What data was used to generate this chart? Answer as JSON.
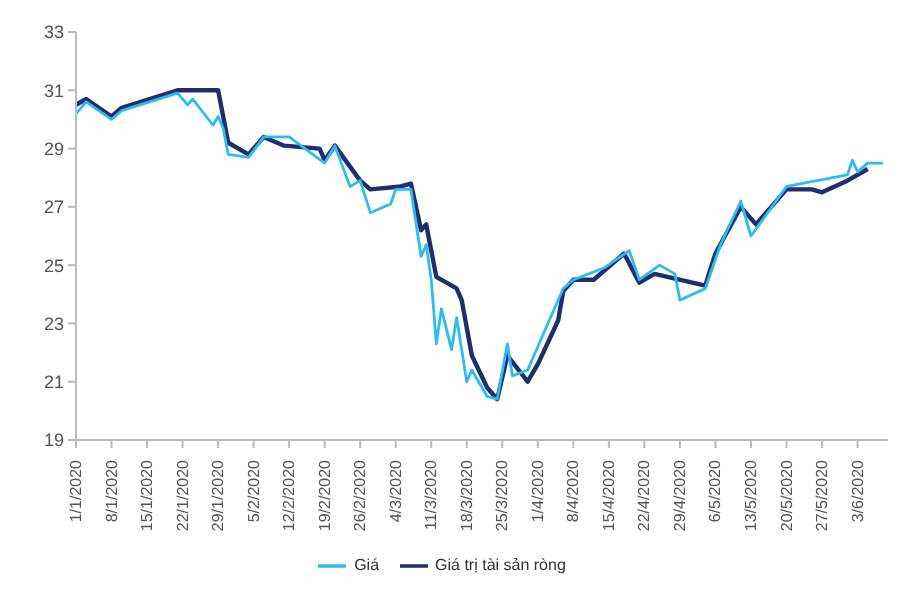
{
  "chart_data": {
    "type": "line",
    "xlim": [
      "2020-01-01",
      "2020-06-09"
    ],
    "ylim": [
      19,
      33
    ],
    "yticks": [
      19,
      21,
      23,
      25,
      27,
      29,
      31,
      33
    ],
    "xticks": [
      {
        "value": "2020-01-01",
        "label": "1/1/2020"
      },
      {
        "value": "2020-01-08",
        "label": "8/1/2020"
      },
      {
        "value": "2020-01-15",
        "label": "15/1/2020"
      },
      {
        "value": "2020-01-22",
        "label": "22/1/2020"
      },
      {
        "value": "2020-01-29",
        "label": "29/1/2020"
      },
      {
        "value": "2020-02-05",
        "label": "5/2/2020"
      },
      {
        "value": "2020-02-12",
        "label": "12/2/2020"
      },
      {
        "value": "2020-02-19",
        "label": "19/2/2020"
      },
      {
        "value": "2020-02-26",
        "label": "26/2/2020"
      },
      {
        "value": "2020-03-04",
        "label": "4/3/2020"
      },
      {
        "value": "2020-03-11",
        "label": "11/3/2020"
      },
      {
        "value": "2020-03-18",
        "label": "18/3/2020"
      },
      {
        "value": "2020-03-25",
        "label": "25/3/2020"
      },
      {
        "value": "2020-04-01",
        "label": "1/4/2020"
      },
      {
        "value": "2020-04-08",
        "label": "8/4/2020"
      },
      {
        "value": "2020-04-15",
        "label": "15/4/2020"
      },
      {
        "value": "2020-04-22",
        "label": "22/4/2020"
      },
      {
        "value": "2020-04-29",
        "label": "29/4/2020"
      },
      {
        "value": "2020-05-06",
        "label": "6/5/2020"
      },
      {
        "value": "2020-05-13",
        "label": "13/5/2020"
      },
      {
        "value": "2020-05-20",
        "label": "20/5/2020"
      },
      {
        "value": "2020-05-27",
        "label": "27/5/2020"
      },
      {
        "value": "2020-06-03",
        "label": "3/6/2020"
      }
    ],
    "grid": false,
    "legend": "bottom",
    "marker": "none",
    "line_style": "solid",
    "series": [
      {
        "name": "Giá trị tài sản ròng",
        "color": "#1f2f6e",
        "x": [
          "2020-01-01",
          "2020-01-03",
          "2020-01-08",
          "2020-01-10",
          "2020-01-21",
          "2020-01-29",
          "2020-01-31",
          "2020-02-04",
          "2020-02-07",
          "2020-02-11",
          "2020-02-18",
          "2020-02-19",
          "2020-02-21",
          "2020-02-26",
          "2020-02-28",
          "2020-03-05",
          "2020-03-07",
          "2020-03-09",
          "2020-03-10",
          "2020-03-12",
          "2020-03-16",
          "2020-03-17",
          "2020-03-19",
          "2020-03-22",
          "2020-03-24",
          "2020-03-26",
          "2020-03-30",
          "2020-04-01",
          "2020-04-05",
          "2020-04-06",
          "2020-04-08",
          "2020-04-12",
          "2020-04-18",
          "2020-04-21",
          "2020-04-24",
          "2020-05-04",
          "2020-05-06",
          "2020-05-11",
          "2020-05-14",
          "2020-05-20",
          "2020-05-25",
          "2020-05-27",
          "2020-06-01",
          "2020-06-05"
        ],
        "values": [
          30.5,
          30.7,
          30.1,
          30.4,
          31.0,
          31.0,
          29.2,
          28.8,
          29.4,
          29.1,
          29.0,
          28.6,
          29.1,
          27.9,
          27.6,
          27.7,
          27.8,
          26.2,
          26.4,
          24.6,
          24.2,
          23.8,
          21.9,
          20.8,
          20.4,
          21.9,
          21.0,
          21.6,
          23.1,
          24.1,
          24.5,
          24.5,
          25.4,
          24.4,
          24.7,
          24.3,
          25.4,
          27.0,
          26.4,
          27.6,
          27.6,
          27.5,
          27.9,
          28.3
        ]
      },
      {
        "name": "Giá",
        "color": "#2ebcf0",
        "x": [
          "2020-01-01",
          "2020-01-03",
          "2020-01-08",
          "2020-01-10",
          "2020-01-21",
          "2020-01-23",
          "2020-01-24",
          "2020-01-28",
          "2020-01-29",
          "2020-01-30",
          "2020-01-31",
          "2020-02-04",
          "2020-02-07",
          "2020-02-12",
          "2020-02-19",
          "2020-02-21",
          "2020-02-24",
          "2020-02-26",
          "2020-02-28",
          "2020-03-03",
          "2020-03-04",
          "2020-03-07",
          "2020-03-09",
          "2020-03-10",
          "2020-03-11",
          "2020-03-12",
          "2020-03-13",
          "2020-03-15",
          "2020-03-16",
          "2020-03-18",
          "2020-03-19",
          "2020-03-22",
          "2020-03-24",
          "2020-03-26",
          "2020-03-27",
          "2020-03-30",
          "2020-04-06",
          "2020-04-08",
          "2020-04-14",
          "2020-04-19",
          "2020-04-21",
          "2020-04-25",
          "2020-04-28",
          "2020-04-29",
          "2020-05-04",
          "2020-05-07",
          "2020-05-11",
          "2020-05-13",
          "2020-05-20",
          "2020-05-26",
          "2020-06-01",
          "2020-06-02",
          "2020-06-03",
          "2020-06-05",
          "2020-06-08"
        ],
        "values": [
          30.2,
          30.6,
          30.0,
          30.3,
          30.9,
          30.5,
          30.7,
          29.8,
          30.1,
          29.7,
          28.8,
          28.7,
          29.4,
          29.4,
          28.5,
          29.1,
          27.7,
          27.9,
          26.8,
          27.1,
          27.6,
          27.6,
          25.3,
          25.7,
          24.5,
          22.3,
          23.5,
          22.1,
          23.2,
          21.0,
          21.4,
          20.5,
          20.4,
          22.3,
          21.2,
          21.4,
          24.2,
          24.5,
          24.9,
          25.5,
          24.5,
          25.0,
          24.7,
          23.8,
          24.2,
          25.7,
          27.2,
          26.0,
          27.7,
          27.9,
          28.1,
          28.6,
          28.2,
          28.5,
          28.5
        ]
      }
    ]
  }
}
